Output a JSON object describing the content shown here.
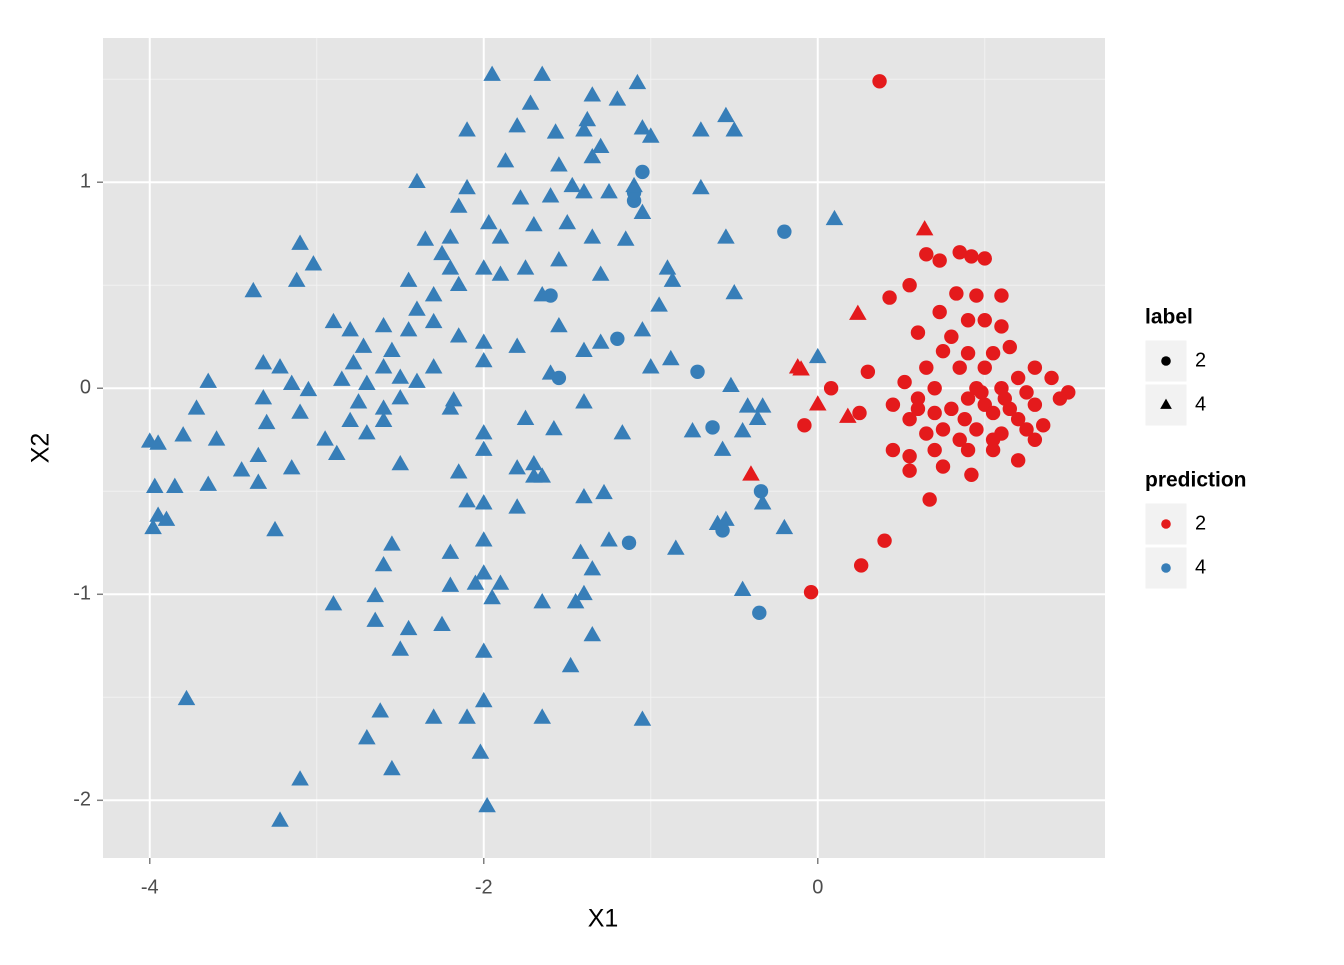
{
  "chart_data": {
    "type": "scatter",
    "xlabel": "X1",
    "ylabel": "X2",
    "xlim": [
      -4.28,
      1.72
    ],
    "ylim": [
      -2.28,
      1.7
    ],
    "xticks": [
      -4,
      -2,
      0
    ],
    "yticks": [
      1,
      0,
      -1,
      -2
    ],
    "xminor": [
      -3,
      -1,
      1
    ],
    "yminor": [
      1.5,
      0.5,
      -0.5,
      -1.5
    ],
    "grid": true,
    "legends": [
      {
        "title": "label",
        "entries": [
          "2",
          "4"
        ],
        "shapes": [
          "circle",
          "triangle"
        ]
      },
      {
        "title": "prediction",
        "entries": [
          "2",
          "4"
        ],
        "colors": [
          "#e41a1c",
          "#377eb8"
        ]
      }
    ],
    "groups": [
      {
        "label": "2",
        "prediction": "2",
        "points": [
          [
            0.37,
            1.49
          ],
          [
            0.65,
            0.65
          ],
          [
            0.73,
            0.62
          ],
          [
            0.85,
            0.66
          ],
          [
            0.92,
            0.64
          ],
          [
            1.0,
            0.63
          ],
          [
            0.43,
            0.44
          ],
          [
            0.55,
            0.5
          ],
          [
            0.83,
            0.46
          ],
          [
            0.95,
            0.45
          ],
          [
            1.1,
            0.45
          ],
          [
            0.73,
            0.37
          ],
          [
            0.9,
            0.33
          ],
          [
            1.0,
            0.33
          ],
          [
            1.1,
            0.3
          ],
          [
            0.6,
            0.27
          ],
          [
            0.75,
            0.18
          ],
          [
            0.9,
            0.17
          ],
          [
            1.05,
            0.17
          ],
          [
            0.65,
            0.1
          ],
          [
            0.85,
            0.1
          ],
          [
            0.3,
            0.08
          ],
          [
            0.08,
            0.0
          ],
          [
            0.52,
            0.03
          ],
          [
            0.7,
            0.0
          ],
          [
            0.95,
            0.0
          ],
          [
            1.1,
            0.0
          ],
          [
            1.2,
            0.05
          ],
          [
            1.3,
            0.1
          ],
          [
            1.4,
            0.05
          ],
          [
            1.5,
            -0.02
          ],
          [
            0.45,
            -0.08
          ],
          [
            0.6,
            -0.05
          ],
          [
            0.8,
            -0.1
          ],
          [
            1.0,
            -0.08
          ],
          [
            1.15,
            -0.1
          ],
          [
            1.3,
            -0.08
          ],
          [
            1.45,
            -0.05
          ],
          [
            0.25,
            -0.12
          ],
          [
            0.55,
            -0.15
          ],
          [
            0.75,
            -0.2
          ],
          [
            0.95,
            -0.2
          ],
          [
            1.1,
            -0.22
          ],
          [
            1.25,
            -0.2
          ],
          [
            1.35,
            -0.18
          ],
          [
            0.65,
            -0.22
          ],
          [
            0.85,
            -0.25
          ],
          [
            1.05,
            -0.25
          ],
          [
            1.3,
            -0.25
          ],
          [
            -0.08,
            -0.18
          ],
          [
            0.45,
            -0.3
          ],
          [
            0.55,
            -0.33
          ],
          [
            0.7,
            -0.3
          ],
          [
            0.9,
            -0.3
          ],
          [
            1.05,
            -0.3
          ],
          [
            1.2,
            -0.35
          ],
          [
            0.55,
            -0.4
          ],
          [
            0.75,
            -0.38
          ],
          [
            0.92,
            -0.42
          ],
          [
            0.67,
            -0.54
          ],
          [
            0.4,
            -0.74
          ],
          [
            0.26,
            -0.86
          ],
          [
            -0.04,
            -0.99
          ],
          [
            0.6,
            -0.1
          ],
          [
            0.9,
            -0.05
          ],
          [
            1.2,
            -0.15
          ],
          [
            1.0,
            0.1
          ],
          [
            0.8,
            0.25
          ],
          [
            1.15,
            0.2
          ],
          [
            0.7,
            -0.12
          ],
          [
            0.98,
            -0.02
          ],
          [
            1.05,
            -0.12
          ],
          [
            1.12,
            -0.05
          ],
          [
            0.88,
            -0.15
          ],
          [
            1.25,
            -0.02
          ]
        ]
      },
      {
        "label": "4",
        "prediction": "2",
        "points": [
          [
            0.64,
            0.77
          ],
          [
            0.24,
            0.36
          ],
          [
            -0.12,
            0.1
          ],
          [
            0.0,
            -0.08
          ],
          [
            0.18,
            -0.14
          ],
          [
            -0.4,
            -0.42
          ],
          [
            -0.1,
            0.09
          ]
        ]
      },
      {
        "label": "2",
        "prediction": "4",
        "points": [
          [
            -1.05,
            1.05
          ],
          [
            -0.2,
            0.76
          ],
          [
            -1.1,
            0.91
          ],
          [
            -1.6,
            0.45
          ],
          [
            -1.2,
            0.24
          ],
          [
            -1.55,
            0.05
          ],
          [
            -0.72,
            0.08
          ],
          [
            -0.63,
            -0.19
          ],
          [
            -0.57,
            -0.69
          ],
          [
            -0.34,
            -0.5
          ],
          [
            -1.13,
            -0.75
          ],
          [
            -0.35,
            -1.09
          ],
          [
            -1.1,
            0.95
          ]
        ]
      },
      {
        "label": "4",
        "prediction": "4",
        "points": [
          [
            -1.95,
            1.52
          ],
          [
            -1.65,
            1.52
          ],
          [
            -1.08,
            1.48
          ],
          [
            -1.35,
            1.42
          ],
          [
            -1.2,
            1.4
          ],
          [
            -1.72,
            1.38
          ],
          [
            -1.38,
            1.3
          ],
          [
            -1.4,
            1.25
          ],
          [
            -0.55,
            1.32
          ],
          [
            -0.5,
            1.25
          ],
          [
            -0.7,
            1.25
          ],
          [
            -1.8,
            1.27
          ],
          [
            -1.57,
            1.24
          ],
          [
            -1.05,
            1.26
          ],
          [
            -2.1,
            1.25
          ],
          [
            -1.3,
            1.17
          ],
          [
            -1.0,
            1.22
          ],
          [
            -1.35,
            1.12
          ],
          [
            -1.55,
            1.08
          ],
          [
            -1.87,
            1.1
          ],
          [
            -1.47,
            0.98
          ],
          [
            -1.25,
            0.95
          ],
          [
            -1.1,
            0.98
          ],
          [
            -0.7,
            0.97
          ],
          [
            -2.1,
            0.97
          ],
          [
            -2.4,
            1.0
          ],
          [
            -1.78,
            0.92
          ],
          [
            -1.6,
            0.93
          ],
          [
            -1.4,
            0.95
          ],
          [
            -1.05,
            0.85
          ],
          [
            -2.15,
            0.88
          ],
          [
            -1.97,
            0.8
          ],
          [
            -1.7,
            0.79
          ],
          [
            -1.5,
            0.8
          ],
          [
            -1.35,
            0.73
          ],
          [
            -1.15,
            0.72
          ],
          [
            -1.9,
            0.73
          ],
          [
            -2.2,
            0.73
          ],
          [
            -0.55,
            0.73
          ],
          [
            -2.35,
            0.72
          ],
          [
            -2.25,
            0.65
          ],
          [
            -3.1,
            0.7
          ],
          [
            -3.02,
            0.6
          ],
          [
            -2.2,
            0.58
          ],
          [
            -2.0,
            0.58
          ],
          [
            -1.9,
            0.55
          ],
          [
            -1.75,
            0.58
          ],
          [
            -1.55,
            0.62
          ],
          [
            -1.3,
            0.55
          ],
          [
            -0.9,
            0.58
          ],
          [
            -0.87,
            0.52
          ],
          [
            -3.12,
            0.52
          ],
          [
            -3.38,
            0.47
          ],
          [
            -2.45,
            0.52
          ],
          [
            -2.3,
            0.45
          ],
          [
            -2.15,
            0.5
          ],
          [
            -2.4,
            0.38
          ],
          [
            -2.3,
            0.32
          ],
          [
            -1.65,
            0.45
          ],
          [
            -0.95,
            0.4
          ],
          [
            -0.5,
            0.46
          ],
          [
            -2.15,
            0.25
          ],
          [
            -2.0,
            0.22
          ],
          [
            -1.55,
            0.3
          ],
          [
            -1.3,
            0.22
          ],
          [
            -1.05,
            0.28
          ],
          [
            -2.9,
            0.32
          ],
          [
            -2.8,
            0.28
          ],
          [
            -2.6,
            0.3
          ],
          [
            -2.45,
            0.28
          ],
          [
            -2.72,
            0.2
          ],
          [
            -2.55,
            0.18
          ],
          [
            -2.6,
            0.1
          ],
          [
            -2.5,
            0.05
          ],
          [
            -2.78,
            0.12
          ],
          [
            -2.4,
            0.03
          ],
          [
            -2.0,
            0.13
          ],
          [
            -1.8,
            0.2
          ],
          [
            -1.4,
            0.18
          ],
          [
            -1.0,
            0.1
          ],
          [
            -0.88,
            0.14
          ],
          [
            -3.32,
            0.12
          ],
          [
            -3.22,
            0.1
          ],
          [
            -2.85,
            0.04
          ],
          [
            -2.7,
            0.02
          ],
          [
            -3.15,
            0.02
          ],
          [
            -3.05,
            -0.01
          ],
          [
            -3.65,
            0.03
          ],
          [
            -2.3,
            0.1
          ],
          [
            -2.5,
            -0.05
          ],
          [
            -1.6,
            0.07
          ],
          [
            -0.52,
            0.01
          ],
          [
            -2.75,
            -0.07
          ],
          [
            -2.6,
            -0.1
          ],
          [
            -2.2,
            -0.1
          ],
          [
            -3.32,
            -0.05
          ],
          [
            -3.1,
            -0.12
          ],
          [
            -2.8,
            -0.16
          ],
          [
            -2.18,
            -0.06
          ],
          [
            -1.4,
            -0.07
          ],
          [
            -0.42,
            -0.09
          ],
          [
            -3.72,
            -0.1
          ],
          [
            -3.6,
            -0.25
          ],
          [
            -2.95,
            -0.25
          ],
          [
            -2.7,
            -0.22
          ],
          [
            -2.6,
            -0.16
          ],
          [
            -3.3,
            -0.17
          ],
          [
            -2.0,
            -0.22
          ],
          [
            -1.75,
            -0.15
          ],
          [
            -1.58,
            -0.2
          ],
          [
            -1.17,
            -0.22
          ],
          [
            -0.75,
            -0.21
          ],
          [
            -0.45,
            -0.21
          ],
          [
            -0.33,
            -0.09
          ],
          [
            -0.36,
            -0.15
          ],
          [
            -3.8,
            -0.23
          ],
          [
            -4.0,
            -0.26
          ],
          [
            -3.95,
            -0.27
          ],
          [
            -3.45,
            -0.4
          ],
          [
            -3.35,
            -0.33
          ],
          [
            -3.15,
            -0.39
          ],
          [
            -2.88,
            -0.32
          ],
          [
            -2.5,
            -0.37
          ],
          [
            -2.15,
            -0.41
          ],
          [
            -2.0,
            -0.3
          ],
          [
            -1.7,
            -0.37
          ],
          [
            -1.7,
            -0.43
          ],
          [
            -1.65,
            -0.43
          ],
          [
            -1.8,
            -0.39
          ],
          [
            -0.57,
            -0.3
          ],
          [
            -3.97,
            -0.48
          ],
          [
            -3.85,
            -0.48
          ],
          [
            -3.65,
            -0.47
          ],
          [
            -3.35,
            -0.46
          ],
          [
            -1.8,
            -0.58
          ],
          [
            -2.1,
            -0.55
          ],
          [
            -2.0,
            -0.56
          ],
          [
            -1.4,
            -0.53
          ],
          [
            -1.28,
            -0.51
          ],
          [
            -0.55,
            -0.64
          ],
          [
            -0.6,
            -0.66
          ],
          [
            -0.33,
            -0.56
          ],
          [
            -0.2,
            -0.68
          ],
          [
            -3.95,
            -0.62
          ],
          [
            -3.9,
            -0.64
          ],
          [
            -3.98,
            -0.68
          ],
          [
            -3.25,
            -0.69
          ],
          [
            -2.55,
            -0.76
          ],
          [
            -2.6,
            -0.86
          ],
          [
            -2.2,
            -0.8
          ],
          [
            -2.0,
            -0.74
          ],
          [
            -2.0,
            -0.9
          ],
          [
            -1.42,
            -0.8
          ],
          [
            -1.35,
            -0.88
          ],
          [
            -1.25,
            -0.74
          ],
          [
            -0.85,
            -0.78
          ],
          [
            -2.9,
            -1.05
          ],
          [
            -2.65,
            -1.01
          ],
          [
            -2.05,
            -0.95
          ],
          [
            -1.95,
            -1.02
          ],
          [
            -1.9,
            -0.95
          ],
          [
            -1.65,
            -1.04
          ],
          [
            -1.45,
            -1.04
          ],
          [
            -1.4,
            -1.0
          ],
          [
            -2.2,
            -0.96
          ],
          [
            -0.45,
            -0.98
          ],
          [
            -2.65,
            -1.13
          ],
          [
            -2.45,
            -1.17
          ],
          [
            -2.25,
            -1.15
          ],
          [
            -1.35,
            -1.2
          ],
          [
            -2.5,
            -1.27
          ],
          [
            -2.0,
            -1.28
          ],
          [
            -1.48,
            -1.35
          ],
          [
            -3.78,
            -1.51
          ],
          [
            -2.0,
            -1.52
          ],
          [
            -2.62,
            -1.57
          ],
          [
            -2.3,
            -1.6
          ],
          [
            -2.1,
            -1.6
          ],
          [
            -1.65,
            -1.6
          ],
          [
            -1.05,
            -1.61
          ],
          [
            -2.7,
            -1.7
          ],
          [
            -2.02,
            -1.77
          ],
          [
            -2.55,
            -1.85
          ],
          [
            -3.1,
            -1.9
          ],
          [
            -3.22,
            -2.1
          ],
          [
            -1.98,
            -2.03
          ],
          [
            0.1,
            0.82
          ],
          [
            0.0,
            0.15
          ]
        ]
      }
    ]
  }
}
